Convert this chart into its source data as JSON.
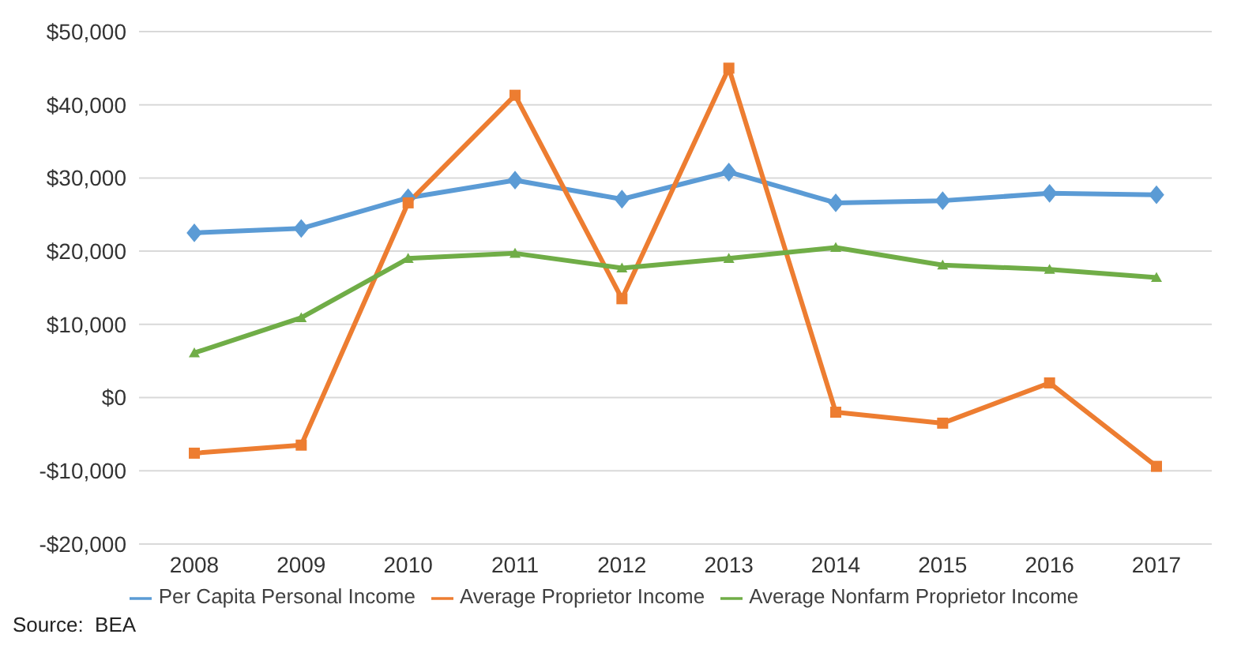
{
  "chart_data": {
    "type": "line",
    "categories": [
      "2008",
      "2009",
      "2010",
      "2011",
      "2012",
      "2013",
      "2014",
      "2015",
      "2016",
      "2017"
    ],
    "series": [
      {
        "name": "Per Capita Personal Income",
        "color": "#5b9bd5",
        "marker": "diamond",
        "values": [
          22500,
          23100,
          27300,
          29700,
          27100,
          30800,
          26600,
          26900,
          27900,
          27700
        ]
      },
      {
        "name": "Average Proprietor Income",
        "color": "#ed7d31",
        "marker": "square",
        "values": [
          -7600,
          -6500,
          26600,
          41300,
          13500,
          45000,
          -2000,
          -3500,
          2000,
          -9400
        ]
      },
      {
        "name": "Average Nonfarm Proprietor Income",
        "color": "#70ad47",
        "marker": "triangle",
        "values": [
          6100,
          10900,
          19000,
          19700,
          17700,
          19000,
          20500,
          18100,
          17500,
          16400
        ]
      }
    ],
    "ylim": [
      -20000,
      50000
    ],
    "yticks": [
      {
        "value": -20000,
        "label": "-$20,000"
      },
      {
        "value": -10000,
        "label": "-$10,000"
      },
      {
        "value": 0,
        "label": "$0"
      },
      {
        "value": 10000,
        "label": "$10,000"
      },
      {
        "value": 20000,
        "label": "$20,000"
      },
      {
        "value": 30000,
        "label": "$30,000"
      },
      {
        "value": 40000,
        "label": "$40,000"
      },
      {
        "value": 50000,
        "label": "$50,000"
      }
    ],
    "grid": "y",
    "legend": "bottom",
    "line_style": "solid",
    "annotations": [
      "Source:  BEA"
    ]
  }
}
